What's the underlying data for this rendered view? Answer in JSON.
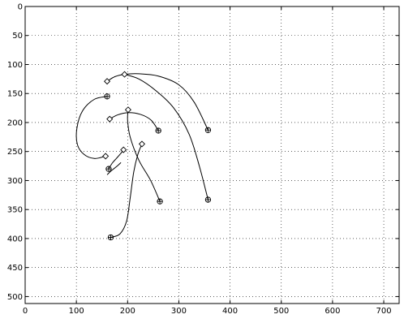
{
  "chart_data": {
    "type": "line",
    "title": "",
    "xlabel": "",
    "ylabel": "",
    "xlim": [
      0,
      730
    ],
    "ylim": [
      512,
      0
    ],
    "y_reversed": true,
    "grid": true,
    "grid_style": "dotted",
    "xticks": [
      0,
      100,
      200,
      300,
      400,
      500,
      600,
      700
    ],
    "yticks": [
      0,
      50,
      100,
      150,
      200,
      250,
      300,
      350,
      400,
      450,
      500
    ],
    "colors": {
      "line": "#000000",
      "grid": "#000000",
      "axes": "#000000"
    },
    "series": [
      {
        "start_marker": "circle-plus",
        "end_marker": "diamond",
        "points": [
          [
            357,
            213
          ],
          [
            330,
            165
          ],
          [
            300,
            135
          ],
          [
            260,
            120
          ],
          [
            222,
            116
          ],
          [
            194,
            117
          ],
          [
            175,
            121
          ],
          [
            160,
            129
          ]
        ]
      },
      {
        "start_marker": "circle-plus",
        "end_marker": "diamond",
        "points": [
          [
            357,
            333
          ],
          [
            340,
            275
          ],
          [
            320,
            220
          ],
          [
            290,
            175
          ],
          [
            255,
            145
          ],
          [
            222,
            125
          ],
          [
            194,
            117
          ]
        ]
      },
      {
        "start_marker": "circle-plus",
        "end_marker": "diamond",
        "points": [
          [
            260,
            214
          ],
          [
            246,
            196
          ],
          [
            225,
            186
          ],
          [
            200,
            183
          ],
          [
            180,
            187
          ],
          [
            165,
            194
          ]
        ]
      },
      {
        "start_marker": "circle-plus",
        "end_marker": "diamond",
        "points": [
          [
            263,
            336
          ],
          [
            245,
            300
          ],
          [
            222,
            265
          ],
          [
            205,
            225
          ],
          [
            200,
            196
          ],
          [
            201,
            178
          ]
        ]
      },
      {
        "start_marker": "circle-plus",
        "end_marker": "diamond",
        "points": [
          [
            160,
            155
          ],
          [
            135,
            160
          ],
          [
            112,
            180
          ],
          [
            101,
            210
          ],
          [
            102,
            238
          ],
          [
            115,
            255
          ],
          [
            135,
            262
          ],
          [
            157,
            258
          ]
        ]
      },
      {
        "start_marker": "circle-plus",
        "end_marker": "diamond",
        "points": [
          [
            167,
            398
          ],
          [
            185,
            392
          ],
          [
            198,
            370
          ],
          [
            205,
            330
          ],
          [
            212,
            285
          ],
          [
            220,
            255
          ],
          [
            228,
            237
          ]
        ]
      },
      {
        "start_marker": "circle-plus",
        "end_marker": "diamond",
        "points": [
          [
            163,
            280
          ],
          [
            170,
            270
          ],
          [
            178,
            262
          ],
          [
            186,
            254
          ],
          [
            192,
            247
          ]
        ]
      },
      {
        "start_marker": "none",
        "end_marker": "none",
        "points": [
          [
            160,
            290
          ],
          [
            167,
            284
          ],
          [
            174,
            279
          ],
          [
            181,
            274
          ],
          [
            187,
            269
          ]
        ]
      }
    ]
  }
}
